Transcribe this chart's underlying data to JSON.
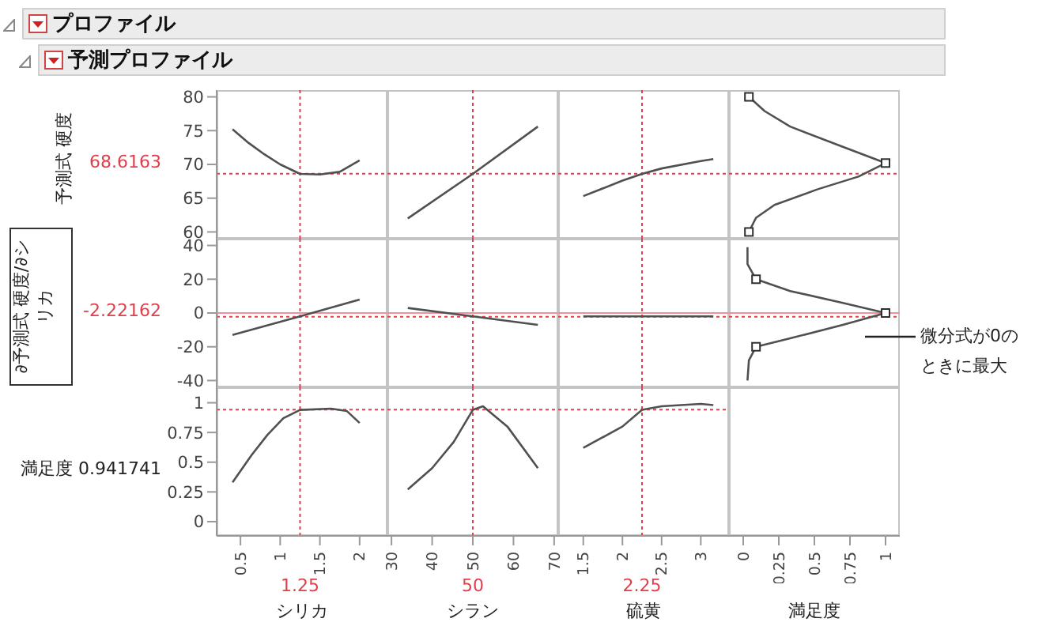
{
  "chart_data": [
    {
      "type": "line",
      "title": "プロファイル",
      "subtitle": "予測プロファイル",
      "ylabel": "予測式 硬度",
      "color": "#505050",
      "x": [
        0.4,
        0.6,
        0.8,
        1.0,
        1.25,
        1.5,
        1.75,
        2.0
      ],
      "values": [
        75.2,
        73.2,
        71.5,
        70.0,
        68.6,
        68.5,
        68.9,
        70.6
      ],
      "xlim": [
        0.2,
        2.35
      ],
      "ylim": [
        59,
        81
      ],
      "yticks": [
        60,
        65,
        70,
        75,
        80
      ],
      "tick_labels": "y",
      "ref_lines": [
        {
          "axis": "x",
          "value": 1.25,
          "color": "#e0404c",
          "line_style": "dotted"
        },
        {
          "axis": "y",
          "value": 68.6163,
          "label": "68.6163",
          "color": "#e0404c",
          "line_style": "dotted"
        }
      ]
    },
    {
      "type": "line",
      "color": "#505050",
      "x": [
        34,
        50,
        66
      ],
      "values": [
        62.0,
        68.6,
        75.6
      ],
      "xlim": [
        29,
        71
      ],
      "ylim": [
        59,
        81
      ],
      "tick_labels": false,
      "ref_lines": [
        {
          "axis": "x",
          "value": 50,
          "color": "#e0404c",
          "line_style": "dotted"
        },
        {
          "axis": "y",
          "value": 68.6163,
          "color": "#e0404c",
          "line_style": "dotted"
        }
      ]
    },
    {
      "type": "line",
      "color": "#505050",
      "x": [
        1.5,
        2.0,
        2.25,
        2.5,
        3.0,
        3.16
      ],
      "values": [
        65.3,
        67.6,
        68.6,
        69.4,
        70.5,
        70.8
      ],
      "xlim": [
        1.18,
        3.36
      ],
      "ylim": [
        59,
        81
      ],
      "tick_labels": false,
      "ref_lines": [
        {
          "axis": "x",
          "value": 2.25,
          "color": "#e0404c",
          "line_style": "dotted"
        },
        {
          "axis": "y",
          "value": 68.6163,
          "color": "#e0404c",
          "line_style": "dotted"
        }
      ]
    },
    {
      "type": "line",
      "xlim": [
        -0.1,
        1.1
      ],
      "ylim": [
        59,
        81
      ],
      "tick_labels": false,
      "series": [
        {
          "color": "#505050",
          "x": [
            0.04,
            0.15,
            0.33,
            0.7,
            1.0,
            0.81,
            0.52,
            0.22,
            0.09,
            0.04
          ],
          "values": [
            80,
            77.9,
            75.6,
            72.6,
            70.2,
            68.2,
            66.3,
            64,
            62.1,
            60
          ]
        },
        {
          "type": "scatter",
          "marker": "square",
          "color": "#303030",
          "x": [
            0.04,
            1.0,
            0.04
          ],
          "values": [
            80,
            70.2,
            60
          ]
        }
      ],
      "ref_lines": [
        {
          "axis": "y",
          "value": 68.6163,
          "color": "#e0404c",
          "line_style": "dotted"
        }
      ]
    },
    {
      "type": "line",
      "ylabel": "∂予測式 硬度/∂シリカ",
      "color": "#505050",
      "x": [
        0.4,
        1.25,
        2.0
      ],
      "values": [
        -13,
        -2,
        8
      ],
      "xlim": [
        0.2,
        2.35
      ],
      "ylim": [
        -44,
        44
      ],
      "yticks": [
        -40,
        -20,
        0,
        20,
        40
      ],
      "tick_labels": "y",
      "ref_lines": [
        {
          "axis": "y",
          "value": 0,
          "color": "#f09098",
          "line_style": "solid"
        },
        {
          "axis": "x",
          "value": 1.25,
          "color": "#e0404c",
          "line_style": "dotted"
        },
        {
          "axis": "y",
          "value": -2.22162,
          "label": "-2.22162",
          "color": "#e0404c",
          "line_style": "dotted"
        }
      ]
    },
    {
      "type": "line",
      "color": "#505050",
      "x": [
        34,
        50,
        66
      ],
      "values": [
        3,
        -2,
        -7
      ],
      "xlim": [
        29,
        71
      ],
      "ylim": [
        -44,
        44
      ],
      "tick_labels": false,
      "ref_lines": [
        {
          "axis": "y",
          "value": 0,
          "color": "#f09098",
          "line_style": "solid"
        },
        {
          "axis": "x",
          "value": 50,
          "color": "#e0404c",
          "line_style": "dotted"
        },
        {
          "axis": "y",
          "value": -2.22162,
          "color": "#e0404c",
          "line_style": "dotted"
        }
      ]
    },
    {
      "type": "line",
      "color": "#505050",
      "x": [
        1.5,
        2.25,
        3.16
      ],
      "values": [
        -2,
        -2,
        -2
      ],
      "xlim": [
        1.18,
        3.36
      ],
      "ylim": [
        -44,
        44
      ],
      "tick_labels": false,
      "ref_lines": [
        {
          "axis": "y",
          "value": 0,
          "color": "#f09098",
          "line_style": "solid"
        },
        {
          "axis": "x",
          "value": 2.25,
          "color": "#e0404c",
          "line_style": "dotted"
        },
        {
          "axis": "y",
          "value": -2.22162,
          "color": "#e0404c",
          "line_style": "dotted"
        }
      ]
    },
    {
      "type": "line",
      "xlim": [
        -0.1,
        1.1
      ],
      "ylim": [
        -44,
        44
      ],
      "tick_labels": false,
      "annotations": [
        "微分式が0のときに最大"
      ],
      "series": [
        {
          "color": "#505050",
          "x": [
            0.03,
            0.03,
            0.09,
            0.33,
            0.7,
            1.0,
            0.7,
            0.33,
            0.09,
            0.04,
            0.03
          ],
          "values": [
            39,
            29,
            20,
            13,
            6,
            0,
            -7,
            -15,
            -20,
            -28,
            -40
          ]
        },
        {
          "type": "scatter",
          "marker": "square",
          "color": "#303030",
          "x": [
            0.09,
            1.0,
            0.09
          ],
          "values": [
            20,
            0,
            -20
          ]
        }
      ],
      "ref_lines": [
        {
          "axis": "y",
          "value": 0,
          "color": "#f09098",
          "line_style": "solid"
        },
        {
          "axis": "y",
          "value": -2.22162,
          "color": "#e0404c",
          "line_style": "dotted"
        }
      ]
    },
    {
      "type": "line",
      "ylabel": "満足度",
      "xlabel": "シリカ",
      "annotations": [
        "0.941741"
      ],
      "color": "#505050",
      "x": [
        0.4,
        0.64,
        0.84,
        1.04,
        1.25,
        1.64,
        1.84,
        2.0
      ],
      "values": [
        0.33,
        0.56,
        0.73,
        0.87,
        0.94,
        0.95,
        0.93,
        0.83
      ],
      "xlim": [
        0.2,
        2.35
      ],
      "ylim": [
        -0.12,
        1.13
      ],
      "xticks": [
        0.5,
        1,
        1.5,
        2
      ],
      "yticks": [
        0,
        0.25,
        0.5,
        0.75,
        1
      ],
      "ref_lines": [
        {
          "axis": "x",
          "value": 1.25,
          "label": "1.25",
          "color": "#e0404c",
          "line_style": "dotted"
        },
        {
          "axis": "y",
          "value": 0.941741,
          "color": "#e0404c",
          "line_style": "dotted"
        }
      ]
    },
    {
      "type": "line",
      "xlabel": "シラン",
      "color": "#505050",
      "x": [
        34,
        40,
        45.3,
        50,
        52.5,
        58.5,
        66
      ],
      "values": [
        0.27,
        0.45,
        0.67,
        0.94,
        0.97,
        0.8,
        0.45
      ],
      "xlim": [
        29,
        71
      ],
      "ylim": [
        -0.12,
        1.13
      ],
      "xticks": [
        30,
        40,
        50,
        60,
        70
      ],
      "tick_labels": "x",
      "ref_lines": [
        {
          "axis": "x",
          "value": 50,
          "label": "50",
          "color": "#e0404c",
          "line_style": "dotted"
        },
        {
          "axis": "y",
          "value": 0.941741,
          "color": "#e0404c",
          "line_style": "dotted"
        }
      ]
    },
    {
      "type": "line",
      "xlabel": "硫黄",
      "color": "#505050",
      "x": [
        1.5,
        2.0,
        2.25,
        2.5,
        3.0,
        3.16
      ],
      "values": [
        0.62,
        0.8,
        0.94,
        0.97,
        0.99,
        0.98
      ],
      "xlim": [
        1.18,
        3.36
      ],
      "ylim": [
        -0.12,
        1.13
      ],
      "xticks": [
        1.5,
        2,
        2.5,
        3
      ],
      "tick_labels": "x",
      "ref_lines": [
        {
          "axis": "x",
          "value": 2.25,
          "label": "2.25",
          "color": "#e0404c",
          "line_style": "dotted"
        },
        {
          "axis": "y",
          "value": 0.941741,
          "color": "#e0404c",
          "line_style": "dotted"
        }
      ]
    },
    {
      "type": "line",
      "xlabel": "満足度",
      "xlim": [
        -0.1,
        1.1
      ],
      "ylim": [
        -0.12,
        1.13
      ],
      "xticks": [
        0,
        0.25,
        0.5,
        0.75,
        1
      ],
      "tick_labels": "x"
    }
  ]
}
